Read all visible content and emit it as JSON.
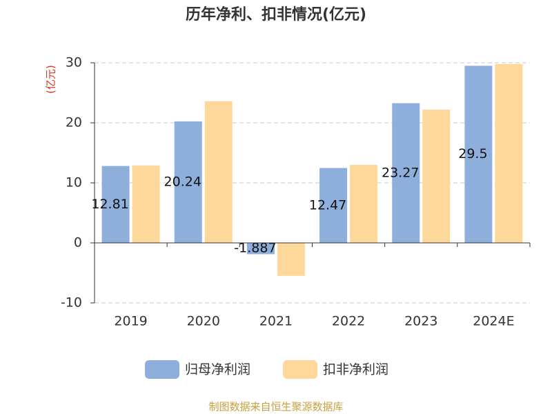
{
  "chart_data": {
    "type": "bar",
    "title": "历年净利、扣非情况(亿元)",
    "y_label": "(亿元)",
    "categories": [
      "2019",
      "2020",
      "2021",
      "2022",
      "2023",
      "2024E"
    ],
    "series": [
      {
        "name": "归母净利润",
        "color": "#8eaedb",
        "values": [
          12.81,
          20.24,
          -1.887,
          12.47,
          23.27,
          29.5
        ],
        "data_labels": true
      },
      {
        "name": "扣非净利润",
        "color": "#fdd89a",
        "values": [
          12.9,
          23.6,
          -5.5,
          13.0,
          22.2,
          29.8
        ]
      }
    ],
    "ylim": [
      -10,
      30
    ],
    "yticks": [
      -10,
      0,
      10,
      20,
      30
    ],
    "grid": true,
    "legend": "bottom",
    "source": "制图数据来自恒生聚源数据库"
  }
}
